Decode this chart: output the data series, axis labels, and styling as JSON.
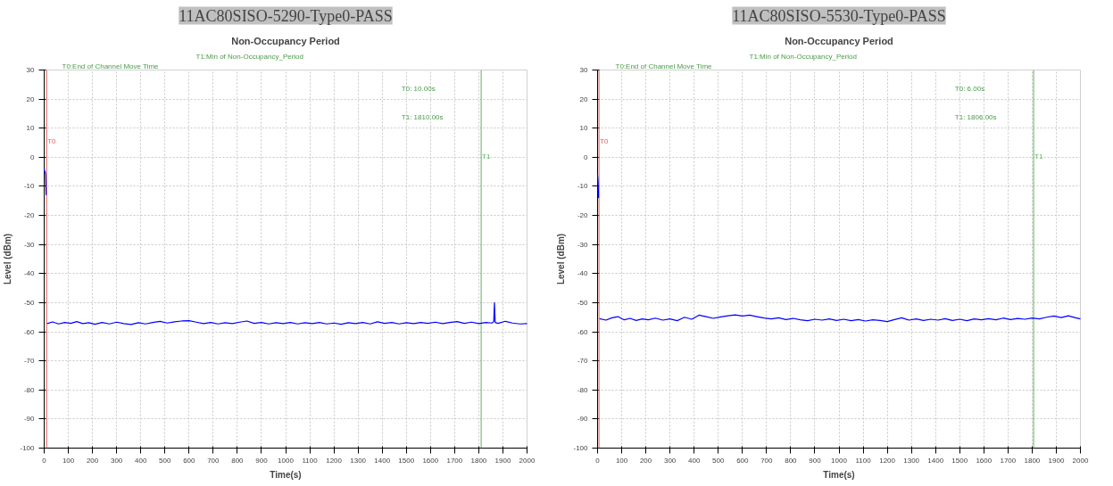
{
  "chart_data": [
    {
      "type": "line",
      "title": "11AC80SISO-5290-Type0-PASS",
      "subtitle": "Non-Occupancy Period",
      "xlabel": "Time(s)",
      "ylabel": "Level (dBm)",
      "xlim": [
        0,
        2000
      ],
      "ylim": [
        -100,
        30
      ],
      "xticks": [
        0,
        100,
        200,
        300,
        400,
        500,
        600,
        700,
        800,
        900,
        1000,
        1100,
        1200,
        1300,
        1400,
        1500,
        1600,
        1700,
        1800,
        1900,
        2000
      ],
      "yticks": [
        -100,
        -90,
        -80,
        -70,
        -60,
        -50,
        -40,
        -30,
        -20,
        -10,
        0,
        10,
        20,
        30
      ],
      "grid": true,
      "ref_lines": [
        {
          "axis": "x",
          "value": 10,
          "label": "T0",
          "color": "#e06060"
        },
        {
          "axis": "x",
          "value": 1810,
          "label": "T1",
          "color": "#60b060"
        }
      ],
      "annotations": [
        "T0:End of Channel Move Time",
        "T1:Min of Non-Occupancy_Period",
        "T0: 10.00s",
        "T1: 1810.00s"
      ],
      "series": [
        {
          "color": "#0000ff",
          "x": [
            0,
            2,
            4,
            6,
            8,
            9,
            12,
            35,
            60,
            85,
            110,
            135,
            160,
            185,
            210,
            240,
            270,
            300,
            330,
            360,
            390,
            420,
            450,
            480,
            510,
            540,
            570,
            600,
            630,
            660,
            690,
            720,
            750,
            780,
            810,
            840,
            870,
            900,
            930,
            960,
            990,
            1020,
            1050,
            1080,
            1110,
            1140,
            1170,
            1200,
            1230,
            1260,
            1290,
            1320,
            1350,
            1380,
            1410,
            1440,
            1470,
            1500,
            1530,
            1560,
            1590,
            1620,
            1650,
            1680,
            1710,
            1740,
            1770,
            1800,
            1830,
            1855,
            1862,
            1865,
            1868,
            1880,
            1910,
            1940,
            1970,
            2000
          ],
          "values": [
            -4,
            -5,
            -5,
            -6,
            -13,
            null,
            -57.2,
            -56.6,
            -57.3,
            -56.8,
            -57.1,
            -56.5,
            -57.2,
            -56.9,
            -57.4,
            -56.8,
            -57.3,
            -56.7,
            -57.2,
            -57.5,
            -56.9,
            -57.3,
            -56.8,
            -56.4,
            -57.0,
            -56.6,
            -56.3,
            -56.2,
            -56.7,
            -57.2,
            -56.8,
            -57.3,
            -56.9,
            -57.2,
            -56.7,
            -56.3,
            -57.1,
            -56.8,
            -57.3,
            -56.9,
            -57.2,
            -56.8,
            -57.3,
            -56.9,
            -57.2,
            -56.8,
            -57.3,
            -57.0,
            -57.4,
            -56.9,
            -57.2,
            -56.8,
            -57.3,
            -56.6,
            -57.1,
            -56.8,
            -57.3,
            -56.9,
            -57.2,
            -56.8,
            -57.1,
            -56.7,
            -57.2,
            -56.8,
            -56.5,
            -57.1,
            -56.7,
            -57.2,
            -56.8,
            -57.0,
            -56.5,
            -50,
            -56.8,
            -57.1,
            -56.4,
            -57.0,
            -57.3,
            -57.2
          ]
        }
      ]
    },
    {
      "type": "line",
      "title": "11AC80SISO-5530-Type0-PASS",
      "subtitle": "Non-Occupancy Period",
      "xlabel": "Time(s)",
      "ylabel": "Level (dBm)",
      "xlim": [
        0,
        2000
      ],
      "ylim": [
        -100,
        30
      ],
      "xticks": [
        0,
        100,
        200,
        300,
        400,
        500,
        600,
        700,
        800,
        900,
        1000,
        1100,
        1200,
        1300,
        1400,
        1500,
        1600,
        1700,
        1800,
        1900,
        2000
      ],
      "yticks": [
        -100,
        -90,
        -80,
        -70,
        -60,
        -50,
        -40,
        -30,
        -20,
        -10,
        0,
        10,
        20,
        30
      ],
      "grid": true,
      "ref_lines": [
        {
          "axis": "x",
          "value": 6,
          "label": "T0",
          "color": "#e06060"
        },
        {
          "axis": "x",
          "value": 1806,
          "label": "T1",
          "color": "#60b060"
        }
      ],
      "annotations": [
        "T0:End of Channel Move Time",
        "T1:Min of Non-Occupancy_Period",
        "T0: 6.00s",
        "T1: 1806.00s"
      ],
      "series": [
        {
          "color": "#0000ff",
          "x": [
            0,
            1,
            2,
            3,
            4,
            5,
            8,
            35,
            60,
            85,
            110,
            135,
            160,
            185,
            210,
            240,
            270,
            300,
            330,
            360,
            390,
            420,
            450,
            480,
            510,
            540,
            570,
            600,
            630,
            660,
            690,
            720,
            750,
            780,
            810,
            840,
            870,
            900,
            930,
            960,
            990,
            1020,
            1050,
            1080,
            1110,
            1140,
            1170,
            1200,
            1230,
            1260,
            1290,
            1320,
            1350,
            1380,
            1410,
            1440,
            1470,
            1500,
            1530,
            1560,
            1590,
            1620,
            1650,
            1680,
            1710,
            1740,
            1770,
            1800,
            1830,
            1860,
            1890,
            1920,
            1950,
            1980,
            2000
          ],
          "values": [
            -6,
            -7,
            -8,
            -10,
            -14,
            null,
            -55.5,
            -56.0,
            -55.2,
            -54.8,
            -55.9,
            -55.4,
            -56.1,
            -55.6,
            -55.9,
            -55.3,
            -56.0,
            -55.6,
            -56.2,
            -55.0,
            -55.7,
            -54.3,
            -54.8,
            -55.4,
            -54.9,
            -54.5,
            -54.2,
            -54.6,
            -54.3,
            -54.8,
            -55.3,
            -55.6,
            -55.2,
            -55.8,
            -55.4,
            -55.9,
            -56.2,
            -55.7,
            -56.0,
            -55.6,
            -56.1,
            -55.7,
            -56.2,
            -55.8,
            -56.3,
            -55.9,
            -56.1,
            -56.5,
            -55.8,
            -55.2,
            -56.0,
            -55.6,
            -56.1,
            -55.7,
            -56.0,
            -55.5,
            -56.1,
            -55.7,
            -56.2,
            -55.6,
            -55.9,
            -55.5,
            -55.9,
            -55.3,
            -55.8,
            -55.4,
            -55.7,
            -55.3,
            -55.6,
            -55.0,
            -54.6,
            -55.1,
            -54.5,
            -55.2,
            -55.6
          ]
        }
      ]
    }
  ]
}
